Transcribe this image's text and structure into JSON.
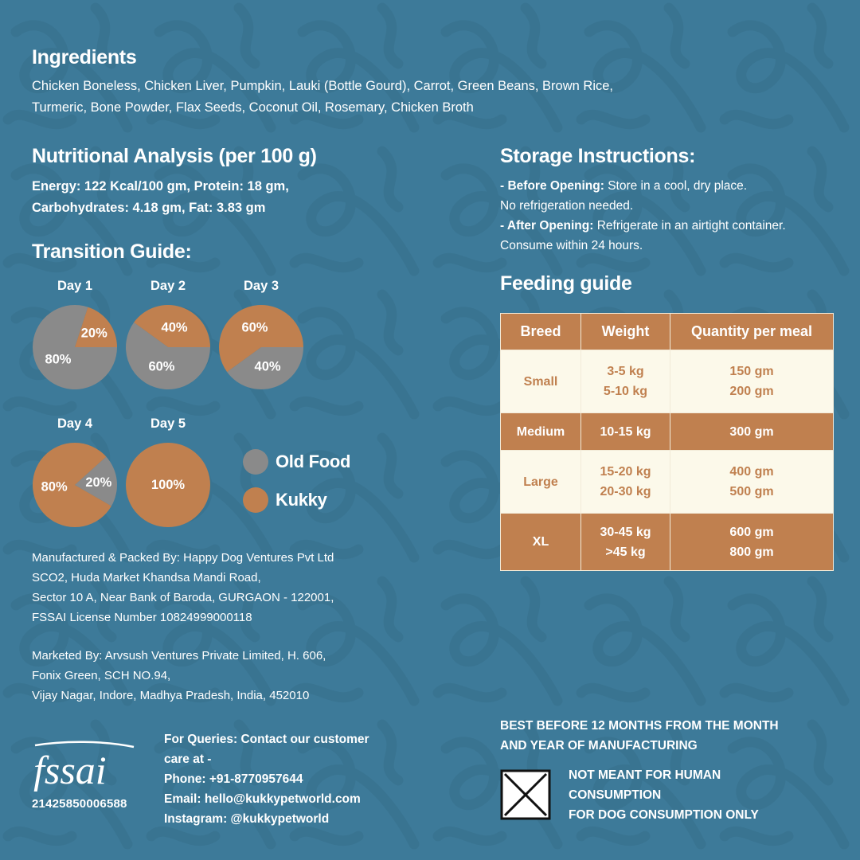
{
  "colors": {
    "background": "#3d7a99",
    "pattern": "#356f8b",
    "old_food": "#8a8a8a",
    "kukky": "#c0804f",
    "table_light": "#fcf9ea"
  },
  "ingredients": {
    "title": "Ingredients",
    "line1": "Chicken Boneless, Chicken Liver, Pumpkin, Lauki (Bottle Gourd), Carrot, Green Beans, Brown Rice,",
    "line2": "Turmeric, Bone Powder, Flax Seeds, Coconut Oil, Rosemary, Chicken Broth"
  },
  "nutrition": {
    "title": "Nutritional Analysis (per 100 g)",
    "line1": "Energy: 122 Kcal/100 gm, Protein: 18 gm,",
    "line2": "Carbohydrates: 4.18 gm, Fat: 3.83 gm"
  },
  "storage": {
    "title": "Storage Instructions:",
    "before_label": "- Before Opening:",
    "before_text": " Store in a cool, dry place.",
    "before_text2": "No refrigeration needed.",
    "after_label": "- After Opening:",
    "after_text": " Refrigerate in an airtight container.",
    "after_text2": "Consume within 24 hours."
  },
  "transition": {
    "title": "Transition Guide:",
    "days": [
      {
        "label": "Day 1",
        "old_pct": 80,
        "kukky_pct": 20,
        "old_text": "80%",
        "kukky_text": "20%"
      },
      {
        "label": "Day 2",
        "old_pct": 60,
        "kukky_pct": 40,
        "old_text": "60%",
        "kukky_text": "40%"
      },
      {
        "label": "Day 3",
        "old_pct": 40,
        "kukky_pct": 60,
        "old_text": "40%",
        "kukky_text": "60%"
      },
      {
        "label": "Day 4",
        "old_pct": 20,
        "kukky_pct": 80,
        "old_text": "20%",
        "kukky_text": "80%"
      },
      {
        "label": "Day 5",
        "old_pct": 0,
        "kukky_pct": 100,
        "old_text": "",
        "kukky_text": "100%"
      }
    ],
    "legend": {
      "old_food": "Old Food",
      "kukky": "Kukky"
    }
  },
  "feeding": {
    "title": "Feeding guide",
    "headers": [
      "Breed",
      "Weight",
      "Quantity per meal"
    ],
    "rows": [
      {
        "breed": "Small",
        "weight": [
          "3-5 kg",
          "5-10 kg"
        ],
        "quantity": [
          "150 gm",
          "200 gm"
        ]
      },
      {
        "breed": "Medium",
        "weight": [
          "10-15 kg"
        ],
        "quantity": [
          "300 gm"
        ]
      },
      {
        "breed": "Large",
        "weight": [
          "15-20 kg",
          "20-30 kg"
        ],
        "quantity": [
          "400 gm",
          "500 gm"
        ]
      },
      {
        "breed": "XL",
        "weight": [
          "30-45 kg",
          ">45 kg"
        ],
        "quantity": [
          "600 gm",
          "800 gm"
        ]
      }
    ]
  },
  "manufacturer": {
    "line1": "Manufactured & Packed By: Happy Dog Ventures Pvt Ltd",
    "line2": "SCO2, Huda Market Khandsa Mandi Road,",
    "line3": "Sector 10 A, Near Bank of Baroda, GURGAON - 122001,",
    "line4": "FSSAI License Number 10824999000118"
  },
  "marketer": {
    "line1": "Marketed By: Arvsush Ventures Private Limited, H. 606,",
    "line2": "Fonix Green, SCH NO.94,",
    "line3": "Vijay Nagar, Indore, Madhya Pradesh, India, 452010"
  },
  "fssai": {
    "logo_text": "fssai",
    "license": "21425850006588"
  },
  "queries": {
    "line1": "For Queries: Contact our customer",
    "line2": "care at -",
    "phone": "Phone: +91-8770957644",
    "email": "Email: hello@kukkypetworld.com",
    "instagram": "Instagram: @kukkypetworld"
  },
  "best_before": {
    "line1": "BEST BEFORE 12 MONTHS FROM THE MONTH",
    "line2": "AND YEAR OF MANUFACTURING"
  },
  "warning": {
    "icon": "not-for-human-consumption-icon",
    "line1": "NOT MEANT FOR HUMAN",
    "line2": "CONSUMPTION",
    "line3": "FOR DOG CONSUMPTION ONLY"
  }
}
